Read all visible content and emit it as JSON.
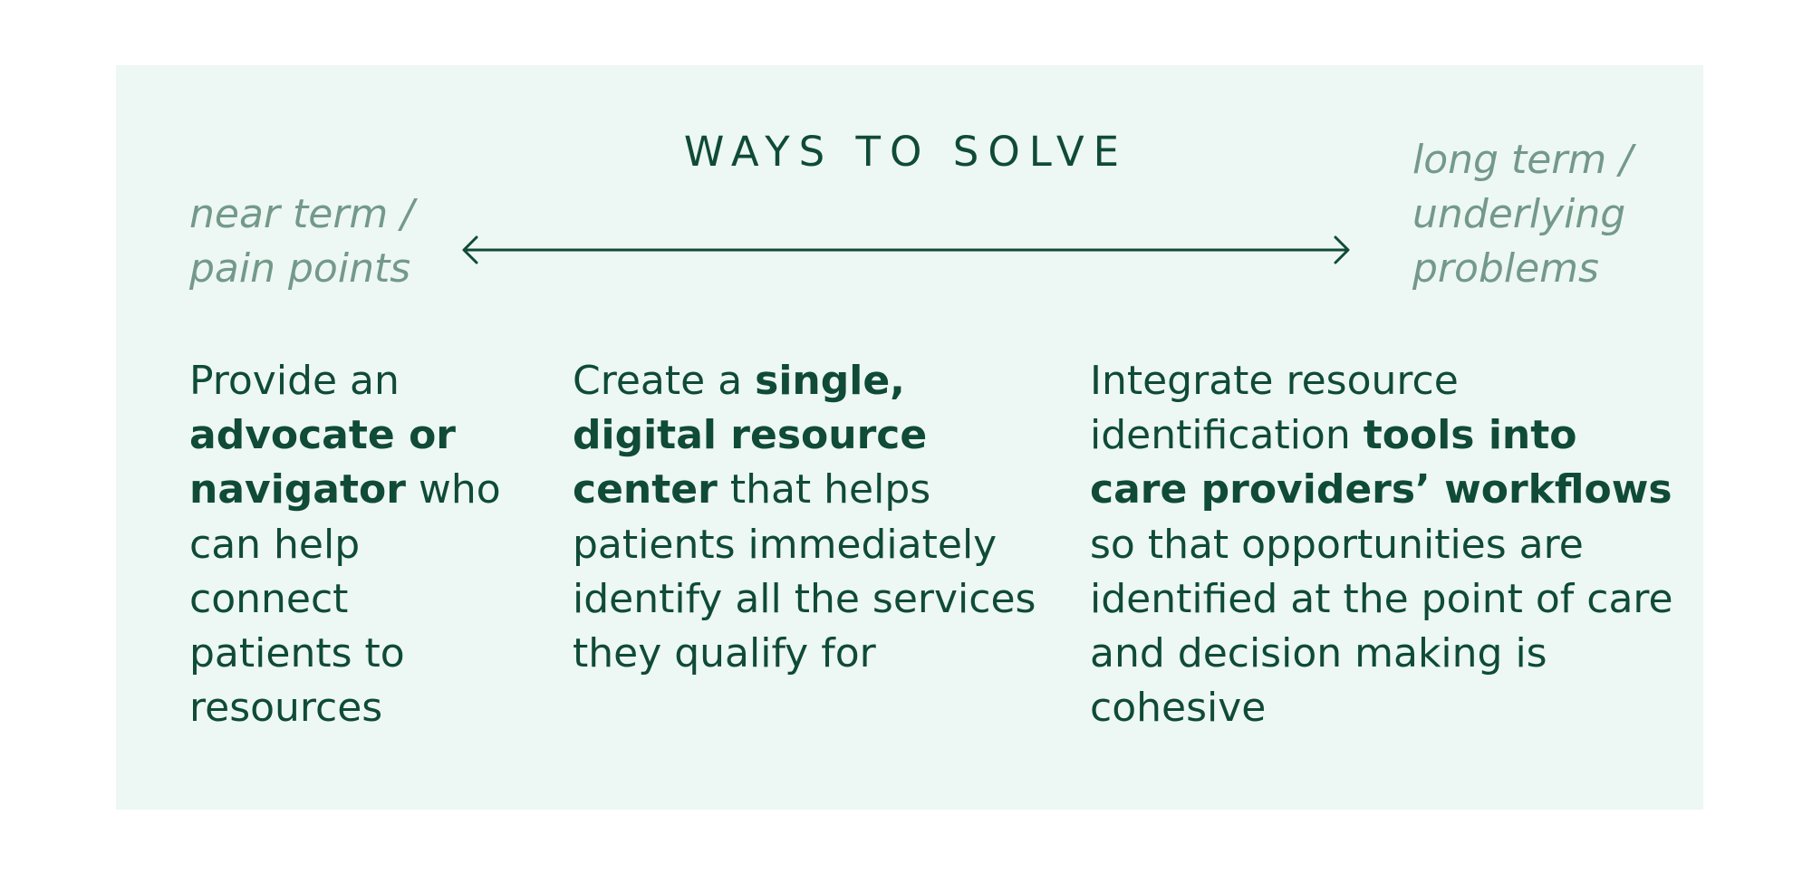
{
  "heading": "WAYS TO SOLVE",
  "near_term": [
    "near term /",
    "pain points"
  ],
  "long_term": [
    "long term /",
    "underlying",
    "problems"
  ],
  "col1": {
    "pre": "Provide an ",
    "bold": "advocate or navigator",
    "post": " who can help connect patients to resources"
  },
  "col2": {
    "pre": "Create a ",
    "bold": "single, digital resource center",
    "post": " that helps patients immediately identify all the services they qualify for"
  },
  "col3": {
    "pre": "Integrate resource identification ",
    "bold": "tools into care providers’ workflows",
    "post": " so that opportunities are identified at the point of care and decision making is cohesive"
  },
  "colors": {
    "panel": "#edf7f3",
    "primary": "#0f4b37",
    "muted": "#73998b"
  }
}
